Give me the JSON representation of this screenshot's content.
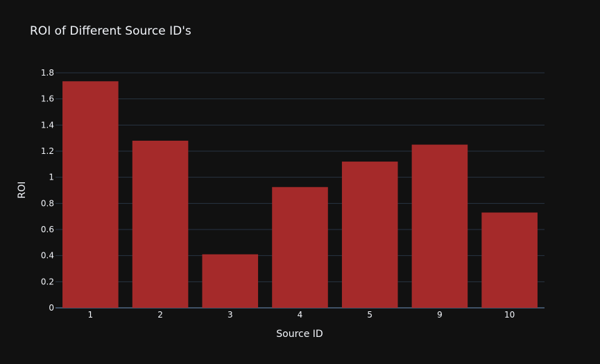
{
  "chart_data": {
    "type": "bar",
    "title": "ROI of Different Source ID's",
    "xlabel": "Source ID",
    "ylabel": "ROI",
    "categories": [
      "1",
      "2",
      "3",
      "4",
      "5",
      "9",
      "10"
    ],
    "values": [
      1.735,
      1.28,
      0.41,
      0.925,
      1.12,
      1.25,
      0.73
    ],
    "ylim": [
      0,
      1.8
    ],
    "yticks": [
      0,
      0.2,
      0.4,
      0.6,
      0.8,
      1,
      1.2,
      1.4,
      1.6,
      1.8
    ],
    "ytick_labels": [
      "0",
      "0.2",
      "0.4",
      "0.6",
      "0.8",
      "1",
      "1.2",
      "1.4",
      "1.6",
      "1.8"
    ],
    "grid": true,
    "colors": {
      "background": "#111111",
      "bar": "#a52a2a",
      "grid": "#283442",
      "text": "#f2f5fa"
    }
  }
}
